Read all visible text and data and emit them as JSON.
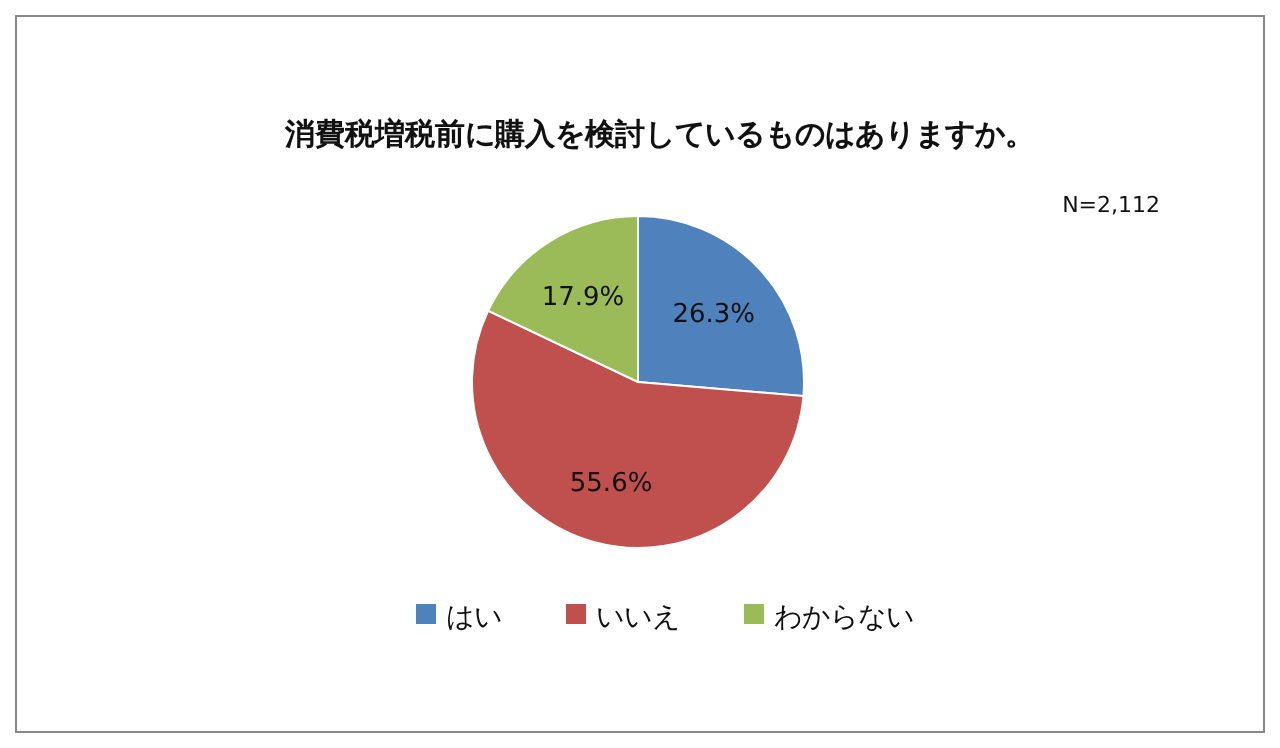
{
  "chart_data": {
    "type": "pie",
    "title": "消費税増税前に購入を検討しているものはありますか。",
    "categories": [
      "はい",
      "いいえ",
      "わからない"
    ],
    "values": [
      26.3,
      55.6,
      17.9
    ],
    "colors": [
      "#4f81bd",
      "#c0504d",
      "#9bbb59"
    ],
    "value_labels": [
      "26.3%",
      "55.6%",
      "17.9%"
    ],
    "legend": "bottom",
    "annotations": [
      "N=2,112"
    ]
  }
}
